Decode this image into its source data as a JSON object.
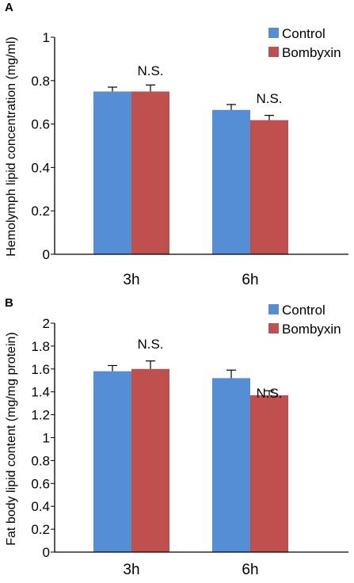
{
  "chart_data": [
    {
      "panel": "A",
      "type": "bar",
      "ylabel": "Hemolymph lipid concentration (mg/ml)",
      "categories": [
        "3h",
        "6h"
      ],
      "ylim": [
        0,
        1
      ],
      "yticks": [
        "0",
        "0.2",
        "0.4",
        "0.6",
        "0.8",
        "1"
      ],
      "series": [
        {
          "name": "Control",
          "color": "#558ed5",
          "values": [
            0.75,
            0.665
          ],
          "errors": [
            0.02,
            0.025
          ]
        },
        {
          "name": "Bombyxin",
          "color": "#c0504d",
          "values": [
            0.75,
            0.618
          ],
          "errors": [
            0.03,
            0.022
          ]
        }
      ],
      "annotations": [
        "N.S.",
        "N.S."
      ],
      "legend": "top-right"
    },
    {
      "panel": "B",
      "type": "bar",
      "ylabel": "Fat body lipid content (mg/mg protein)",
      "categories": [
        "3h",
        "6h"
      ],
      "ylim": [
        0,
        2
      ],
      "yticks": [
        "0",
        "0.2",
        "0.4",
        "0.6",
        "0.8",
        "1",
        "1.2",
        "1.4",
        "1.6",
        "1.8",
        "2"
      ],
      "series": [
        {
          "name": "Control",
          "color": "#558ed5",
          "values": [
            1.58,
            1.52
          ],
          "errors": [
            0.05,
            0.07
          ]
        },
        {
          "name": "Bombyxin",
          "color": "#c0504d",
          "values": [
            1.6,
            1.37
          ],
          "errors": [
            0.07,
            0.04
          ]
        }
      ],
      "annotations": [
        "N.S.",
        "N.S."
      ],
      "legend": "top-right"
    }
  ]
}
